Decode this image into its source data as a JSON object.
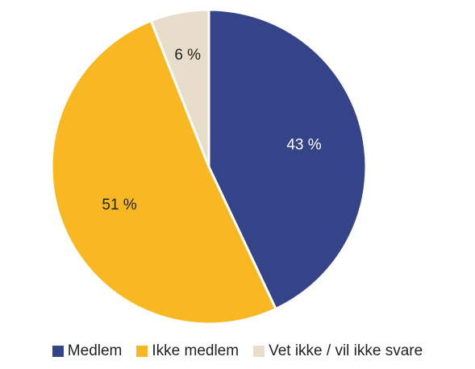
{
  "chart_data": {
    "type": "pie",
    "categories": [
      "Medlem",
      "Ikke medlem",
      "Vet ikke / vil ikke svare"
    ],
    "values": [
      43,
      51,
      6
    ],
    "value_labels": [
      "43 %",
      "51 %",
      "6 %"
    ],
    "colors": [
      "#354388",
      "#f9b822",
      "#e8dccb"
    ],
    "label_colors": [
      "#ffffff",
      "#222222",
      "#222222"
    ],
    "start": "12 o'clock",
    "direction": "clockwise",
    "legend_position": "bottom",
    "title": ""
  }
}
